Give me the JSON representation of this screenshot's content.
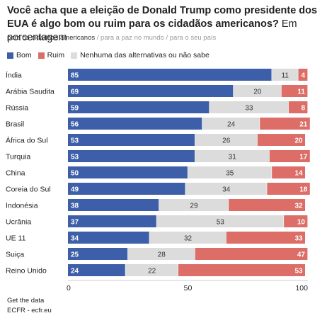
{
  "header": {
    "title": "Você acha que a eleição de Donald Trump como presidente dos EUA é algo bom ou ruim para os cidadãos americanos?",
    "unit": "Em porcentagem",
    "tabs": [
      {
        "label": "para os cidadãos americanos",
        "active": true
      },
      {
        "label": "para a paz no mundo",
        "active": false
      },
      {
        "label": "para o seu país",
        "active": false
      }
    ],
    "tab_separator": "/"
  },
  "legend": {
    "items": [
      {
        "label": "Bom",
        "color": "#3d5ea8"
      },
      {
        "label": "Ruim",
        "color": "#dc6d67"
      },
      {
        "label": "Nenhuma das alternativas ou não sabe",
        "color": "#dcdcdc"
      }
    ]
  },
  "chart_data": {
    "type": "bar",
    "stacked": true,
    "orientation": "horizontal",
    "categories": [
      "Índia",
      "Arábia Saudita",
      "Rússia",
      "Brasil",
      "África do Sul",
      "Turquia",
      "China",
      "Coreia do Sul",
      "Indonésia",
      "Ucrânia",
      "UE 11",
      "Suiça",
      "Reino Unido"
    ],
    "series": [
      {
        "name": "Bom",
        "color": "#3d5ea8",
        "values": [
          85,
          69,
          59,
          56,
          53,
          53,
          50,
          49,
          38,
          37,
          34,
          25,
          24
        ]
      },
      {
        "name": "Nenhuma das alternativas ou não sabe",
        "color": "#dcdcdc",
        "values": [
          11,
          20,
          33,
          24,
          26,
          31,
          35,
          34,
          29,
          53,
          32,
          28,
          22
        ]
      },
      {
        "name": "Ruim",
        "color": "#dc6d67",
        "values": [
          4,
          11,
          8,
          21,
          20,
          17,
          14,
          18,
          32,
          10,
          33,
          47,
          53
        ]
      }
    ],
    "xlim": [
      0,
      100
    ],
    "xticks": [
      0,
      50,
      100
    ],
    "grid": false,
    "legend_position": "top-left"
  },
  "footer": {
    "line1": "Get the data",
    "line2": "ECFR - ecfr.eu"
  }
}
